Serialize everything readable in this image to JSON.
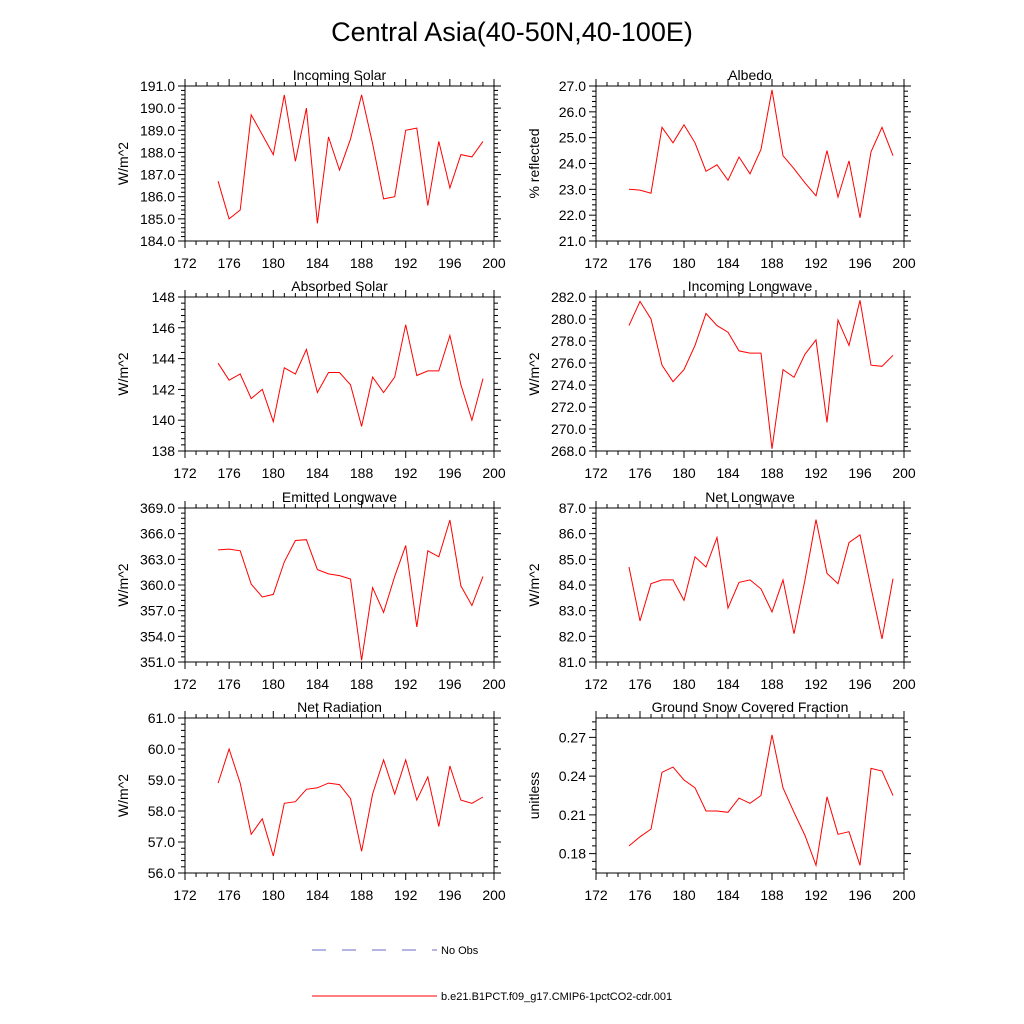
{
  "figure_title": "Central Asia(40-50N,40-100E)",
  "legend": {
    "entries": [
      {
        "label": "No Obs",
        "color": "#6b6bc8",
        "style": "dashed"
      },
      {
        "label": "b.e21.B1PCT.f09_g17.CMIP6-1pctCO2-cdr.001",
        "color": "#ff0000",
        "style": "solid"
      }
    ]
  },
  "chart_data": [
    {
      "type": "line",
      "title": "Incoming Solar",
      "ylabel": "W/m^2",
      "xlim": [
        172,
        200
      ],
      "ylim": [
        184.0,
        191.0
      ],
      "xticks": [
        "172",
        "176",
        "180",
        "184",
        "188",
        "192",
        "196",
        "200"
      ],
      "yticks": [
        "184.0",
        "185.0",
        "186.0",
        "187.0",
        "188.0",
        "189.0",
        "190.0",
        "191.0"
      ],
      "series": [
        {
          "color": "#ff0000",
          "x": [
            175,
            176,
            177,
            178,
            179,
            180,
            181,
            182,
            183,
            184,
            185,
            186,
            187,
            188,
            189,
            190,
            191,
            192,
            193,
            194,
            195,
            196,
            197,
            198,
            199
          ],
          "values": [
            186.7,
            185.0,
            185.4,
            189.7,
            188.8,
            187.9,
            190.6,
            187.6,
            190.0,
            184.8,
            188.7,
            187.2,
            188.6,
            190.6,
            188.4,
            185.9,
            186.0,
            189.0,
            189.1,
            185.6,
            188.5,
            186.4,
            187.9,
            187.8,
            188.5
          ]
        }
      ]
    },
    {
      "type": "line",
      "title": "Albedo",
      "ylabel": "% reflected",
      "xlim": [
        172,
        200
      ],
      "ylim": [
        21.0,
        27.0
      ],
      "xticks": [
        "172",
        "176",
        "180",
        "184",
        "188",
        "192",
        "196",
        "200"
      ],
      "yticks": [
        "21.0",
        "22.0",
        "23.0",
        "24.0",
        "25.0",
        "26.0",
        "27.0"
      ],
      "series": [
        {
          "color": "#ff0000",
          "x": [
            175,
            176,
            177,
            178,
            179,
            180,
            181,
            182,
            183,
            184,
            185,
            186,
            187,
            188,
            189,
            190,
            191,
            192,
            193,
            194,
            195,
            196,
            197,
            198,
            199
          ],
          "values": [
            23.0,
            22.97,
            22.85,
            25.4,
            24.8,
            25.5,
            24.8,
            23.7,
            23.95,
            23.35,
            24.25,
            23.6,
            24.55,
            26.85,
            24.3,
            23.8,
            23.25,
            22.75,
            24.5,
            22.7,
            24.1,
            21.9,
            24.45,
            25.4,
            24.3
          ]
        }
      ]
    },
    {
      "type": "line",
      "title": "Absorbed Solar",
      "ylabel": "W/m^2",
      "xlim": [
        172,
        200
      ],
      "ylim": [
        138,
        148
      ],
      "xticks": [
        "172",
        "176",
        "180",
        "184",
        "188",
        "192",
        "196",
        "200"
      ],
      "yticks": [
        "138",
        "140",
        "142",
        "144",
        "146",
        "148"
      ],
      "series": [
        {
          "color": "#ff0000",
          "x": [
            175,
            176,
            177,
            178,
            179,
            180,
            181,
            182,
            183,
            184,
            185,
            186,
            187,
            188,
            189,
            190,
            191,
            192,
            193,
            194,
            195,
            196,
            197,
            198,
            199
          ],
          "values": [
            143.7,
            142.6,
            143.0,
            141.4,
            142.0,
            139.9,
            143.4,
            143.0,
            144.6,
            141.8,
            143.1,
            143.1,
            142.3,
            139.6,
            142.8,
            141.8,
            142.8,
            146.2,
            142.9,
            143.2,
            143.2,
            145.5,
            142.3,
            140.0,
            142.7
          ]
        }
      ]
    },
    {
      "type": "line",
      "title": "Incoming Longwave",
      "ylabel": "W/m^2",
      "xlim": [
        172,
        200
      ],
      "ylim": [
        268.0,
        282.0
      ],
      "xticks": [
        "172",
        "176",
        "180",
        "184",
        "188",
        "192",
        "196",
        "200"
      ],
      "yticks": [
        "268.0",
        "270.0",
        "272.0",
        "274.0",
        "276.0",
        "278.0",
        "280.0",
        "282.0"
      ],
      "series": [
        {
          "color": "#ff0000",
          "x": [
            175,
            176,
            177,
            178,
            179,
            180,
            181,
            182,
            183,
            184,
            185,
            186,
            187,
            188,
            189,
            190,
            191,
            192,
            193,
            194,
            195,
            196,
            197,
            198,
            199
          ],
          "values": [
            279.4,
            281.6,
            280.0,
            275.8,
            274.3,
            275.4,
            277.6,
            280.5,
            279.4,
            278.8,
            277.1,
            276.9,
            276.9,
            268.2,
            275.4,
            274.7,
            276.8,
            278.1,
            270.6,
            279.9,
            277.6,
            281.7,
            275.8,
            275.7,
            276.7
          ]
        }
      ]
    },
    {
      "type": "line",
      "title": "Emitted Longwave",
      "ylabel": "W/m^2",
      "xlim": [
        172,
        200
      ],
      "ylim": [
        351.0,
        369.0
      ],
      "xticks": [
        "172",
        "176",
        "180",
        "184",
        "188",
        "192",
        "196",
        "200"
      ],
      "yticks": [
        "351.0",
        "354.0",
        "357.0",
        "360.0",
        "363.0",
        "366.0",
        "369.0"
      ],
      "series": [
        {
          "color": "#ff0000",
          "x": [
            175,
            176,
            177,
            178,
            179,
            180,
            181,
            182,
            183,
            184,
            185,
            186,
            187,
            188,
            189,
            190,
            191,
            192,
            193,
            194,
            195,
            196,
            197,
            198,
            199
          ],
          "values": [
            364.1,
            364.2,
            364.0,
            360.1,
            358.6,
            358.9,
            362.7,
            365.2,
            365.3,
            361.8,
            361.3,
            361.1,
            360.7,
            351.2,
            359.7,
            356.8,
            361.0,
            364.6,
            355.1,
            364.0,
            363.3,
            367.6,
            359.9,
            357.6,
            361.0
          ]
        }
      ]
    },
    {
      "type": "line",
      "title": "Net Longwave",
      "ylabel": "W/m^2",
      "xlim": [
        172,
        200
      ],
      "ylim": [
        81.0,
        87.0
      ],
      "xticks": [
        "172",
        "176",
        "180",
        "184",
        "188",
        "192",
        "196",
        "200"
      ],
      "yticks": [
        "81.0",
        "82.0",
        "83.0",
        "84.0",
        "85.0",
        "86.0",
        "87.0"
      ],
      "series": [
        {
          "color": "#ff0000",
          "x": [
            175,
            176,
            177,
            178,
            179,
            180,
            181,
            182,
            183,
            184,
            185,
            186,
            187,
            188,
            189,
            190,
            191,
            192,
            193,
            194,
            195,
            196,
            197,
            198,
            199
          ],
          "values": [
            84.7,
            82.6,
            84.05,
            84.2,
            84.2,
            83.4,
            85.1,
            84.7,
            85.85,
            83.1,
            84.1,
            84.2,
            83.85,
            82.95,
            84.2,
            82.1,
            84.2,
            86.55,
            84.45,
            84.05,
            85.65,
            85.95,
            83.9,
            81.9,
            84.25
          ]
        }
      ]
    },
    {
      "type": "line",
      "title": "Net Radiation",
      "ylabel": "W/m^2",
      "xlim": [
        172,
        200
      ],
      "ylim": [
        56.0,
        61.0
      ],
      "xticks": [
        "172",
        "176",
        "180",
        "184",
        "188",
        "192",
        "196",
        "200"
      ],
      "yticks": [
        "56.0",
        "57.0",
        "58.0",
        "59.0",
        "60.0",
        "61.0"
      ],
      "series": [
        {
          "color": "#ff0000",
          "x": [
            175,
            176,
            177,
            178,
            179,
            180,
            181,
            182,
            183,
            184,
            185,
            186,
            187,
            188,
            189,
            190,
            191,
            192,
            193,
            194,
            195,
            196,
            197,
            198,
            199
          ],
          "values": [
            58.9,
            60.0,
            58.9,
            57.25,
            57.75,
            56.55,
            58.25,
            58.3,
            58.7,
            58.75,
            58.9,
            58.85,
            58.4,
            56.7,
            58.55,
            59.65,
            58.55,
            59.65,
            58.35,
            59.1,
            57.5,
            59.45,
            58.35,
            58.25,
            58.45
          ]
        }
      ]
    },
    {
      "type": "line",
      "title": "Ground Snow Covered Fraction",
      "ylabel": "unitless",
      "xlim": [
        172,
        200
      ],
      "ylim": [
        0.165,
        0.285
      ],
      "xticks": [
        "172",
        "176",
        "180",
        "184",
        "188",
        "192",
        "196",
        "200"
      ],
      "yticks": [
        "0.18",
        "0.21",
        "0.24",
        "0.27"
      ],
      "ytick_values": [
        0.18,
        0.21,
        0.24,
        0.27
      ],
      "series": [
        {
          "color": "#ff0000",
          "x": [
            175,
            176,
            177,
            178,
            179,
            180,
            181,
            182,
            183,
            184,
            185,
            186,
            187,
            188,
            189,
            190,
            191,
            192,
            193,
            194,
            195,
            196,
            197,
            198,
            199
          ],
          "values": [
            0.186,
            0.193,
            0.199,
            0.243,
            0.247,
            0.237,
            0.231,
            0.213,
            0.213,
            0.212,
            0.223,
            0.219,
            0.225,
            0.272,
            0.231,
            0.212,
            0.194,
            0.171,
            0.224,
            0.195,
            0.197,
            0.171,
            0.246,
            0.244,
            0.225
          ]
        }
      ]
    }
  ]
}
